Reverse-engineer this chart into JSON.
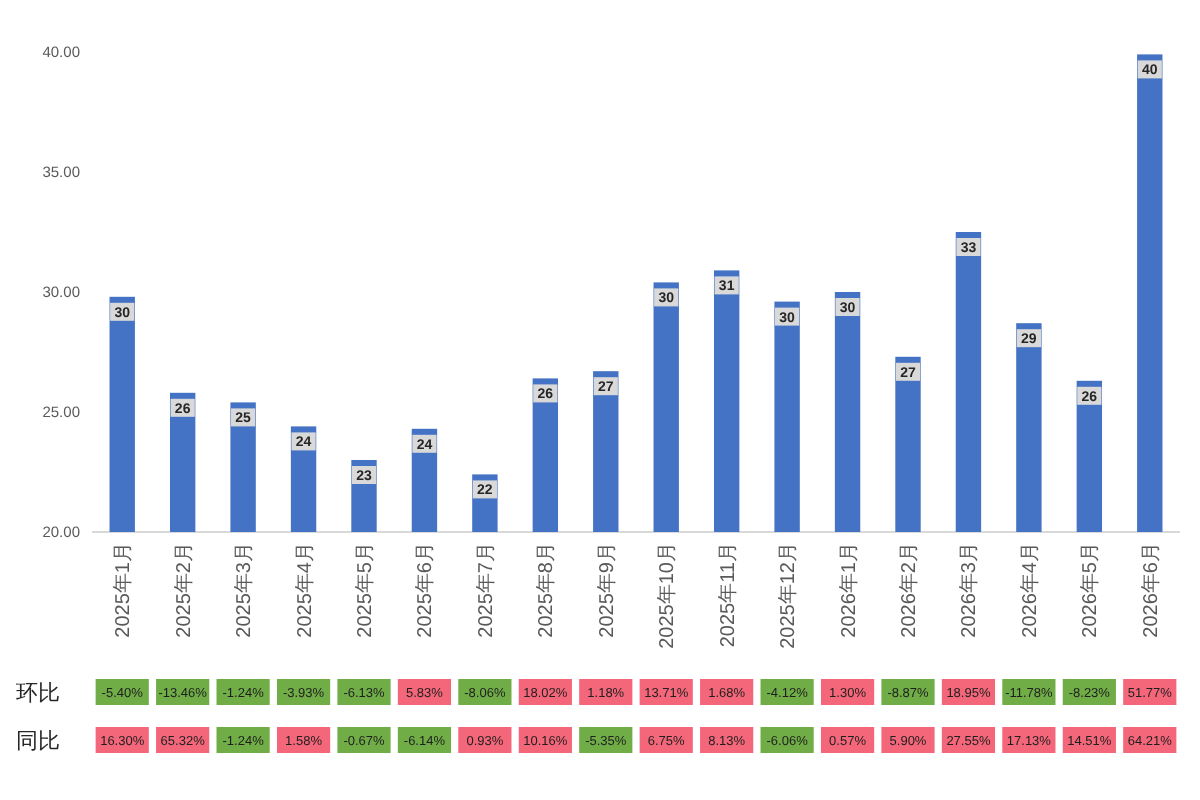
{
  "chart_data": [
    {
      "type": "bar",
      "categories": [
        "2025年1月",
        "2025年2月",
        "2025年3月",
        "2025年4月",
        "2025年5月",
        "2025年6月",
        "2025年7月",
        "2025年8月",
        "2025年9月",
        "2025年10月",
        "2025年11月",
        "2025年12月",
        "2026年1月",
        "2026年2月",
        "2026年3月",
        "2026年4月",
        "2026年5月",
        "2026年6月"
      ],
      "values": [
        29.8,
        25.8,
        25.4,
        24.4,
        23.0,
        24.3,
        22.4,
        26.4,
        26.7,
        30.4,
        30.9,
        29.6,
        30.0,
        27.3,
        32.5,
        28.7,
        26.3,
        39.9
      ],
      "value_labels": [
        "30",
        "26",
        "25",
        "24",
        "23",
        "24",
        "22",
        "26",
        "27",
        "30",
        "31",
        "30",
        "30",
        "27",
        "33",
        "29",
        "26",
        "40"
      ],
      "color": "#4472c4",
      "ylim": [
        20,
        40
      ],
      "yticks": [
        {
          "value": 20,
          "label": "20.00"
        },
        {
          "value": 25,
          "label": "25.00"
        },
        {
          "value": 30,
          "label": "30.00"
        },
        {
          "value": 35,
          "label": "35.00"
        },
        {
          "value": 40,
          "label": "40.00"
        }
      ]
    },
    {
      "type": "heatmap",
      "categories": [
        null,
        null,
        null,
        null,
        null,
        null,
        null,
        null,
        null,
        null,
        null,
        null,
        null,
        null,
        null,
        null,
        null,
        null
      ],
      "y_categories": [
        "环比",
        "同比"
      ],
      "cells": [
        [
          -5.4,
          -13.46,
          -1.24,
          -3.93,
          -6.13,
          5.83,
          -8.06,
          18.02,
          1.18,
          13.71,
          1.68,
          -4.12,
          1.3,
          -8.87,
          18.95,
          -11.78,
          -8.23,
          51.77
        ],
        [
          16.3,
          65.32,
          -1.24,
          1.58,
          -0.67,
          -6.14,
          0.93,
          10.16,
          -5.35,
          6.75,
          8.13,
          -6.06,
          0.57,
          5.9,
          27.55,
          17.13,
          14.51,
          64.21
        ]
      ],
      "cell_labels": [
        [
          "-5.40%",
          "-13.46%",
          "-1.24%",
          "-3.93%",
          "-6.13%",
          "5.83%",
          "-8.06%",
          "18.02%",
          "1.18%",
          "13.71%",
          "1.68%",
          "-4.12%",
          "1.30%",
          "-8.87%",
          "18.95%",
          "-11.78%",
          "-8.23%",
          "51.77%"
        ],
        [
          "16.30%",
          "65.32%",
          "-1.24%",
          "1.58%",
          "-0.67%",
          "-6.14%",
          "0.93%",
          "10.16%",
          "-5.35%",
          "6.75%",
          "8.13%",
          "-6.06%",
          "0.57%",
          "5.90%",
          "27.55%",
          "17.13%",
          "14.51%",
          "64.21%"
        ]
      ]
    }
  ]
}
